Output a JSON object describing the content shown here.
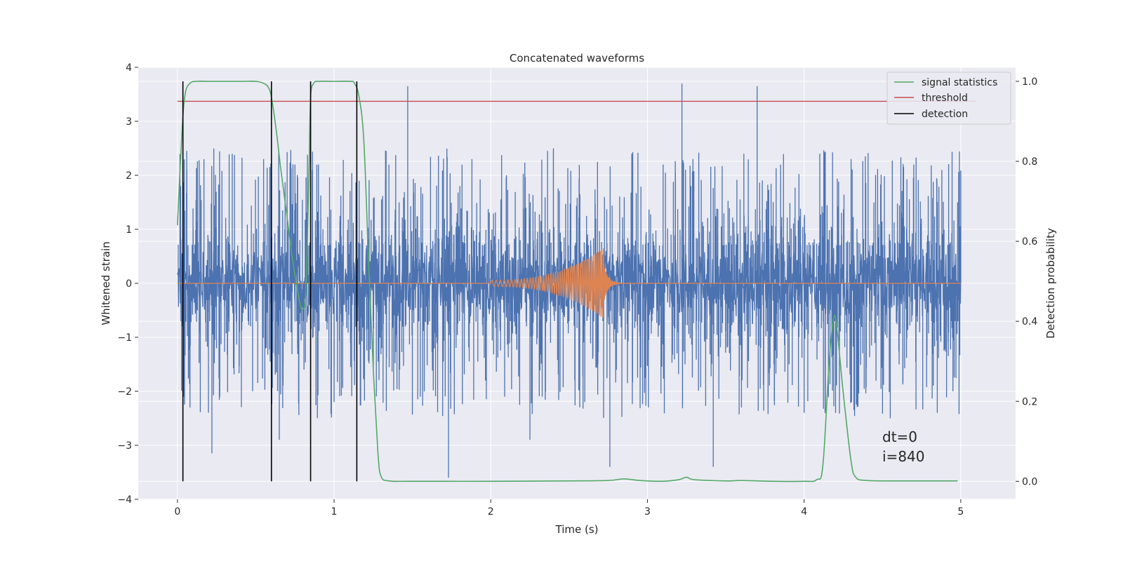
{
  "chart_data": {
    "type": "line",
    "title": "Concatenated waveforms",
    "xlabel": "Time (s)",
    "ylabel": "Whitened strain",
    "y2label": "Detection probability",
    "xlim": [
      -0.25,
      5.35
    ],
    "ylim": [
      -4.0,
      4.0
    ],
    "y2lim": [
      -0.045,
      1.035
    ],
    "xticks": [
      0,
      1,
      2,
      3,
      4,
      5
    ],
    "yticks": [
      -4,
      -3,
      -2,
      -1,
      0,
      1,
      2,
      3,
      4
    ],
    "y2ticks": [
      0.0,
      0.2,
      0.4,
      0.6,
      0.8,
      1.0
    ],
    "xtick_labels": [
      "0",
      "1",
      "2",
      "3",
      "4",
      "5"
    ],
    "ytick_labels": [
      "−4",
      "−3",
      "−2",
      "−1",
      "0",
      "1",
      "2",
      "3",
      "4"
    ],
    "y2tick_labels": [
      "0.0",
      "0.2",
      "0.4",
      "0.6",
      "0.8",
      "1.0"
    ],
    "grid": true,
    "legend_position": "top-right",
    "colors": {
      "background": "#eaeaf2",
      "grid": "#ffffff",
      "strain": "#4c72b0",
      "waveform": "#dd8452",
      "signal": "#55a868",
      "threshold": "#c44e52",
      "detection": "#000000"
    },
    "series": [
      {
        "name": "signal statistics",
        "axis": "right",
        "x": [
          0.0,
          0.03,
          0.05,
          0.08,
          0.12,
          0.2,
          0.4,
          0.5,
          0.55,
          0.58,
          0.6,
          0.63,
          0.66,
          0.7,
          0.74,
          0.78,
          0.8,
          0.82,
          0.84,
          0.85,
          0.87,
          0.9,
          1.0,
          1.1,
          1.13,
          1.16,
          1.19,
          1.22,
          1.25,
          1.28,
          1.3,
          1.35,
          1.5,
          2.0,
          2.5,
          2.75,
          2.85,
          2.95,
          3.1,
          3.2,
          3.25,
          3.3,
          3.5,
          3.6,
          3.8,
          4.0,
          4.08,
          4.12,
          4.16,
          4.19,
          4.21,
          4.25,
          4.3,
          4.33,
          4.4,
          4.6,
          4.98
        ],
        "y": [
          0.64,
          0.88,
          0.97,
          0.995,
          1.0,
          1.0,
          1.0,
          1.0,
          0.995,
          0.985,
          0.96,
          0.88,
          0.78,
          0.66,
          0.54,
          0.45,
          0.43,
          0.48,
          0.78,
          0.96,
          0.995,
          1.0,
          1.0,
          1.0,
          0.995,
          0.96,
          0.85,
          0.55,
          0.28,
          0.07,
          0.012,
          0.001,
          0.0,
          0.0,
          0.001,
          0.002,
          0.006,
          0.002,
          0.0,
          0.004,
          0.01,
          0.004,
          0.001,
          0.002,
          0.0,
          0.0,
          0.004,
          0.04,
          0.3,
          0.41,
          0.38,
          0.22,
          0.05,
          0.01,
          0.002,
          0.001,
          0.001
        ]
      },
      {
        "name": "threshold",
        "axis": "right",
        "x": [
          0.0,
          5.1
        ],
        "y": [
          0.95,
          0.95
        ]
      },
      {
        "name": "detection",
        "axis": "right",
        "type": "vline",
        "x": [
          0.035,
          0.6,
          0.85,
          1.145
        ],
        "y_range": [
          0.0,
          1.0
        ]
      },
      {
        "axis": "left",
        "type": "noise",
        "x_range": [
          0.0,
          5.0
        ],
        "core_amplitude": 0.7,
        "spikes": [
          {
            "x": 0.02,
            "y": 1.8
          },
          {
            "x": 0.04,
            "y": -2.1
          },
          {
            "x": 0.06,
            "y": 2.1
          },
          {
            "x": 0.08,
            "y": -2.3
          },
          {
            "x": 0.22,
            "y": -3.15
          },
          {
            "x": 0.35,
            "y": 2.4
          },
          {
            "x": 0.48,
            "y": -2.0
          },
          {
            "x": 0.55,
            "y": 2.3
          },
          {
            "x": 0.65,
            "y": -2.9
          },
          {
            "x": 0.75,
            "y": 2.2
          },
          {
            "x": 0.9,
            "y": 2.2
          },
          {
            "x": 1.0,
            "y": -2.2
          },
          {
            "x": 1.16,
            "y": 1.9
          },
          {
            "x": 1.35,
            "y": 2.2
          },
          {
            "x": 1.47,
            "y": 3.65
          },
          {
            "x": 1.55,
            "y": -2.1
          },
          {
            "x": 1.73,
            "y": -3.6
          },
          {
            "x": 1.88,
            "y": 2.3
          },
          {
            "x": 2.1,
            "y": 2.0
          },
          {
            "x": 2.25,
            "y": -2.9
          },
          {
            "x": 2.4,
            "y": 2.5
          },
          {
            "x": 2.6,
            "y": -2.2
          },
          {
            "x": 2.76,
            "y": -3.4
          },
          {
            "x": 2.9,
            "y": 2.4
          },
          {
            "x": 3.1,
            "y": 2.2
          },
          {
            "x": 3.22,
            "y": 3.7
          },
          {
            "x": 3.42,
            "y": -3.4
          },
          {
            "x": 3.6,
            "y": -2.3
          },
          {
            "x": 3.7,
            "y": 3.65
          },
          {
            "x": 3.85,
            "y": 2.2
          },
          {
            "x": 4.0,
            "y": -2.4
          },
          {
            "x": 4.1,
            "y": 2.4
          },
          {
            "x": 4.3,
            "y": 2.3
          },
          {
            "x": 4.55,
            "y": -2.5
          },
          {
            "x": 4.7,
            "y": 2.2
          },
          {
            "x": 4.85,
            "y": -2.4
          },
          {
            "x": 4.95,
            "y": -2.0
          },
          {
            "x": 4.98,
            "y": 1.5
          }
        ]
      },
      {
        "axis": "left",
        "type": "chirp",
        "x_range": [
          2.0,
          2.72
        ],
        "amplitude_start": 0.06,
        "amplitude_peak": 0.65,
        "ringdown_end": 3.0,
        "baseline": 0.0
      }
    ],
    "annotations": [
      "dt=0",
      "i=840"
    ]
  }
}
